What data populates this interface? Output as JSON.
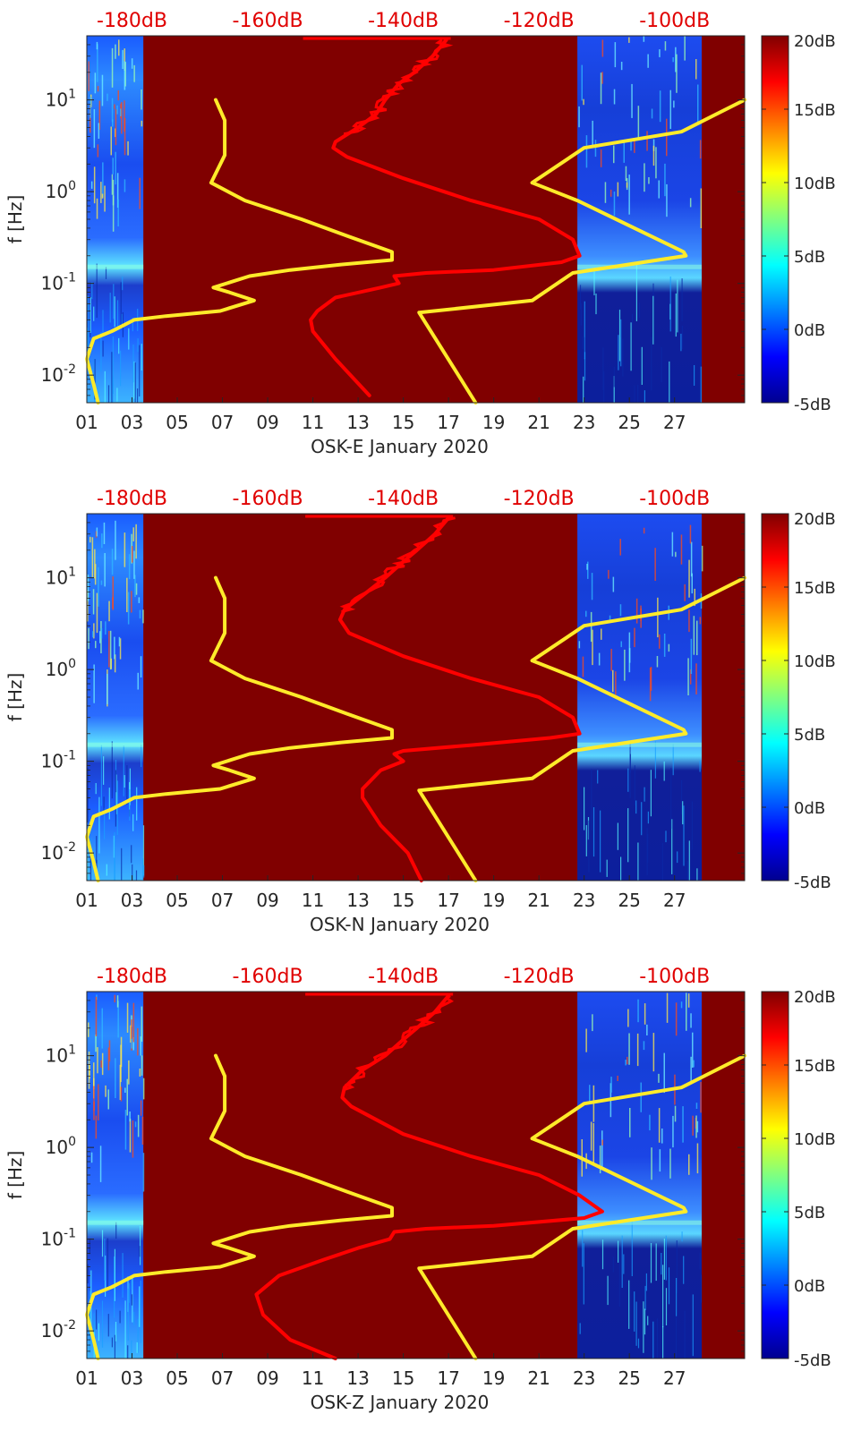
{
  "figure": {
    "colors": {
      "background_field": "#800000",
      "red_curve": "#ff0000",
      "yellow_curve": "#ffeb2a",
      "top_axis_text": "#e00000",
      "axis_text": "#262626"
    },
    "colorbar": {
      "ticks": [
        "20dB",
        "15dB",
        "10dB",
        "5dB",
        "0dB",
        "-5dB"
      ],
      "values": [
        20,
        15,
        10,
        5,
        0,
        -5
      ],
      "range": [
        -5,
        20
      ]
    }
  },
  "chart_data": [
    {
      "type": "heatmap",
      "title": "OSK-E January 2020",
      "xlabel": "OSK-E January 2020",
      "ylabel": "f [Hz]",
      "x_ticks": [
        "01",
        "03",
        "05",
        "07",
        "09",
        "11",
        "13",
        "15",
        "17",
        "19",
        "21",
        "23",
        "25",
        "27"
      ],
      "y_ticks": [
        "10^1",
        "10^0",
        "10^-1",
        "10^-2"
      ],
      "y_tick_values": [
        10,
        1,
        0.1,
        0.01
      ],
      "top_ticks": [
        "-180dB",
        "-160dB",
        "-140dB",
        "-120dB",
        "-100dB"
      ],
      "top_tick_days": [
        3,
        9,
        15,
        21,
        27
      ],
      "xlim": [
        1,
        30.1
      ],
      "ylim": [
        0.005,
        50
      ],
      "data_columns": [
        [
          1,
          3.5
        ],
        [
          22.7,
          28.2
        ]
      ],
      "series": [
        {
          "name": "yellow-model-curve",
          "x_day": [
            6.7,
            7.1,
            7.1,
            6.5,
            8.0,
            10.5,
            12.5,
            14.5,
            14.5,
            12.2,
            10.0,
            8.2,
            6.6,
            7.3,
            8.4,
            6.9,
            4.5,
            3.1,
            2.1,
            1.3,
            1.0,
            1.3,
            1.5
          ],
          "y_hz": [
            10,
            6,
            2.5,
            1.25,
            0.8,
            0.5,
            0.33,
            0.22,
            0.18,
            0.16,
            0.14,
            0.12,
            0.09,
            0.08,
            0.065,
            0.05,
            0.044,
            0.04,
            0.03,
            0.025,
            0.015,
            0.008,
            0.005
          ]
        },
        {
          "name": "yellow-model-curve-shifted",
          "x_day": [
            30.1,
            27.3,
            23.0,
            20.7,
            22.7,
            27.4,
            27.5,
            22.5,
            20.7,
            15.7,
            18.2
          ],
          "y_hz": [
            10,
            4.5,
            3.0,
            1.25,
            0.8,
            0.22,
            0.2,
            0.13,
            0.065,
            0.048,
            0.005
          ]
        },
        {
          "name": "red-noise-curve",
          "x_day": [
            16.9,
            16.3,
            15.5,
            14.8,
            14.2,
            13.8,
            13.0,
            12.0,
            11.9,
            12.5,
            15.0,
            18.0,
            21.0,
            22.5,
            22.8,
            22.0,
            19.0,
            16.0,
            14.6,
            14.8,
            14.0,
            12.0,
            11.2,
            10.9,
            11.0,
            12.0,
            13.5
          ],
          "y_hz": [
            45,
            30,
            20,
            15,
            10,
            7,
            5,
            3.5,
            3,
            2.4,
            1.4,
            0.8,
            0.5,
            0.3,
            0.2,
            0.17,
            0.14,
            0.13,
            0.12,
            0.1,
            0.09,
            0.07,
            0.05,
            0.04,
            0.03,
            0.015,
            0.006
          ]
        }
      ]
    },
    {
      "type": "heatmap",
      "title": "OSK-N January 2020",
      "xlabel": "OSK-N January 2020",
      "ylabel": "f [Hz]",
      "x_ticks": [
        "01",
        "03",
        "05",
        "07",
        "09",
        "11",
        "13",
        "15",
        "17",
        "19",
        "21",
        "23",
        "25",
        "27"
      ],
      "y_ticks": [
        "10^1",
        "10^0",
        "10^-1",
        "10^-2"
      ],
      "y_tick_values": [
        10,
        1,
        0.1,
        0.01
      ],
      "top_ticks": [
        "-180dB",
        "-160dB",
        "-140dB",
        "-120dB",
        "-100dB"
      ],
      "top_tick_days": [
        3,
        9,
        15,
        21,
        27
      ],
      "xlim": [
        1,
        30.1
      ],
      "ylim": [
        0.005,
        50
      ],
      "data_columns": [
        [
          1,
          3.5
        ],
        [
          22.7,
          28.2
        ]
      ],
      "series": [
        {
          "name": "yellow-model-curve",
          "x_day": [
            6.7,
            7.1,
            7.1,
            6.5,
            8.0,
            10.5,
            12.5,
            14.5,
            14.5,
            12.2,
            10.0,
            8.2,
            6.6,
            7.3,
            8.4,
            6.9,
            4.5,
            3.1,
            2.1,
            1.3,
            1.0,
            1.3,
            1.5
          ],
          "y_hz": [
            10,
            6,
            2.5,
            1.25,
            0.8,
            0.5,
            0.33,
            0.22,
            0.18,
            0.16,
            0.14,
            0.12,
            0.09,
            0.08,
            0.065,
            0.05,
            0.044,
            0.04,
            0.03,
            0.025,
            0.015,
            0.008,
            0.005
          ]
        },
        {
          "name": "yellow-model-curve-shifted",
          "x_day": [
            30.1,
            27.3,
            23.0,
            20.7,
            22.7,
            27.4,
            27.5,
            22.5,
            20.7,
            15.7,
            18.2
          ],
          "y_hz": [
            10,
            4.5,
            3.0,
            1.25,
            0.8,
            0.22,
            0.2,
            0.13,
            0.065,
            0.048,
            0.005
          ]
        },
        {
          "name": "red-noise-curve",
          "x_day": [
            17.0,
            16.4,
            15.6,
            15.0,
            14.2,
            13.4,
            12.4,
            12.2,
            12.6,
            15.0,
            18.0,
            21.0,
            22.5,
            22.8,
            21.5,
            18.0,
            15.0,
            14.6,
            15.0,
            14.0,
            13.2,
            13.2,
            14.0,
            15.2,
            15.8
          ],
          "y_hz": [
            45,
            30,
            20,
            15,
            10,
            7,
            4.5,
            3.5,
            2.5,
            1.4,
            0.8,
            0.5,
            0.3,
            0.2,
            0.18,
            0.15,
            0.13,
            0.12,
            0.1,
            0.08,
            0.05,
            0.04,
            0.02,
            0.01,
            0.005
          ]
        }
      ]
    },
    {
      "type": "heatmap",
      "title": "OSK-Z January 2020",
      "xlabel": "OSK-Z January 2020",
      "ylabel": "f [Hz]",
      "x_ticks": [
        "01",
        "03",
        "05",
        "07",
        "09",
        "11",
        "13",
        "15",
        "17",
        "19",
        "21",
        "23",
        "25",
        "27"
      ],
      "y_ticks": [
        "10^1",
        "10^0",
        "10^-1",
        "10^-2"
      ],
      "y_tick_values": [
        10,
        1,
        0.1,
        0.01
      ],
      "top_ticks": [
        "-180dB",
        "-160dB",
        "-140dB",
        "-120dB",
        "-100dB"
      ],
      "top_tick_days": [
        3,
        9,
        15,
        21,
        27
      ],
      "xlim": [
        1,
        30.1
      ],
      "ylim": [
        0.005,
        50
      ],
      "data_columns": [
        [
          1,
          3.5
        ],
        [
          22.7,
          28.2
        ]
      ],
      "series": [
        {
          "name": "yellow-model-curve",
          "x_day": [
            6.7,
            7.1,
            7.1,
            6.5,
            8.0,
            10.5,
            12.5,
            14.5,
            14.5,
            12.2,
            10.0,
            8.2,
            6.6,
            7.3,
            8.4,
            6.9,
            4.5,
            3.1,
            2.1,
            1.3,
            1.0,
            1.3,
            1.5
          ],
          "y_hz": [
            10,
            6,
            2.5,
            1.25,
            0.8,
            0.5,
            0.33,
            0.22,
            0.18,
            0.16,
            0.14,
            0.12,
            0.09,
            0.08,
            0.065,
            0.05,
            0.044,
            0.04,
            0.03,
            0.025,
            0.015,
            0.008,
            0.005
          ]
        },
        {
          "name": "yellow-model-curve-shifted",
          "x_day": [
            30.1,
            27.3,
            23.0,
            20.7,
            22.7,
            27.4,
            27.5,
            22.5,
            20.7,
            15.7,
            18.2
          ],
          "y_hz": [
            10,
            4.5,
            3.0,
            1.25,
            0.8,
            0.22,
            0.2,
            0.13,
            0.065,
            0.048,
            0.005
          ]
        },
        {
          "name": "red-noise-curve",
          "x_day": [
            17.0,
            16.4,
            15.6,
            15.0,
            14.2,
            13.2,
            12.4,
            12.3,
            12.7,
            15.0,
            18.0,
            21.0,
            22.8,
            23.8,
            23.0,
            19.0,
            16.0,
            14.6,
            14.4,
            13.0,
            11.5,
            9.5,
            8.5,
            8.8,
            10.0,
            12.0
          ],
          "y_hz": [
            45,
            30,
            20,
            15,
            10,
            7,
            4.5,
            3.5,
            2.8,
            1.4,
            0.8,
            0.5,
            0.3,
            0.2,
            0.17,
            0.14,
            0.13,
            0.12,
            0.1,
            0.08,
            0.06,
            0.04,
            0.025,
            0.015,
            0.008,
            0.005
          ]
        }
      ]
    }
  ]
}
